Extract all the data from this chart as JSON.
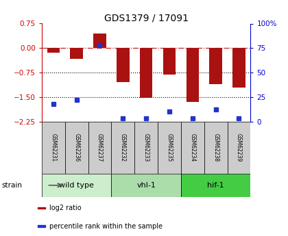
{
  "title": "GDS1379 / 17091",
  "samples": [
    "GSM62231",
    "GSM62236",
    "GSM62237",
    "GSM62232",
    "GSM62233",
    "GSM62235",
    "GSM62234",
    "GSM62238",
    "GSM62239"
  ],
  "log2_ratio": [
    -0.15,
    -0.32,
    0.45,
    -1.05,
    -1.52,
    -0.82,
    -1.65,
    -1.1,
    -1.2
  ],
  "percentile_rank": [
    18,
    22,
    78,
    3,
    3,
    10,
    3,
    12,
    3
  ],
  "ylim_left": [
    -2.25,
    0.75
  ],
  "ylim_right": [
    0,
    100
  ],
  "yticks_left": [
    -2.25,
    -1.5,
    -0.75,
    0,
    0.75
  ],
  "yticks_right": [
    0,
    25,
    50,
    75,
    100
  ],
  "dotted_lines": [
    -0.75,
    -1.5
  ],
  "bar_color": "#aa1111",
  "dot_color": "#2233cc",
  "groups": [
    {
      "label": "wild type",
      "start": 0,
      "end": 3,
      "color": "#cceecc"
    },
    {
      "label": "vhl-1",
      "start": 3,
      "end": 6,
      "color": "#aaddaa"
    },
    {
      "label": "hif-1",
      "start": 6,
      "end": 9,
      "color": "#44cc44"
    }
  ],
  "strain_label": "strain",
  "legend_items": [
    {
      "color": "#aa1111",
      "label": "log2 ratio"
    },
    {
      "color": "#2233cc",
      "label": "percentile rank within the sample"
    }
  ],
  "bar_width": 0.55,
  "sample_label_color": "#cccccc",
  "spine_color_left": "#cc0000",
  "spine_color_right": "#0000cc"
}
